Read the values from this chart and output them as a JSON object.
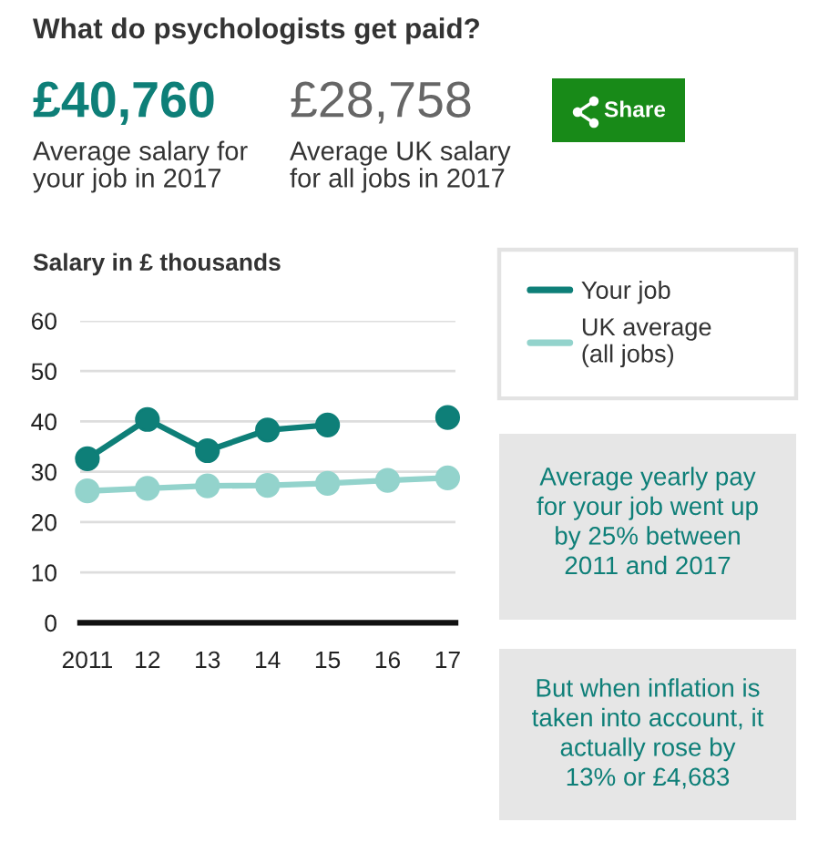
{
  "chart_data": {
    "type": "line",
    "title": "What do psychologists get paid?",
    "ylabel": "Salary in £ thousands",
    "x": [
      2011,
      2012,
      2013,
      2014,
      2015,
      2016,
      2017
    ],
    "xlim": [
      2010.88,
      2017.13
    ],
    "xticks": [
      2011,
      {
        "value": 2012,
        "label": "12"
      },
      {
        "value": 2013,
        "label": "13"
      },
      {
        "value": 2014,
        "label": "14"
      },
      {
        "value": 2015,
        "label": "15"
      },
      {
        "value": 2016,
        "label": "16"
      },
      {
        "value": 2017,
        "label": "17"
      }
    ],
    "ylim": [
      0,
      60
    ],
    "yticks": [
      0,
      10,
      20,
      30,
      40,
      50,
      60
    ],
    "series": [
      {
        "name": "Your job",
        "color": "#0e7f78",
        "values": [
          32.6,
          40.4,
          34.2,
          38.3,
          39.3,
          null,
          40.8
        ]
      },
      {
        "name": "UK average\n(all jobs)",
        "color": "#93d3cc",
        "values": [
          26.2,
          26.7,
          27.2,
          27.3,
          27.7,
          28.3,
          28.8
        ]
      }
    ],
    "grid": "y",
    "legend": "right",
    "marker": "circle",
    "line_style": "solid",
    "annotations": [
      "£40,760",
      "Average salary for\nyour job in 2017",
      "£28,758",
      "Average UK salary\nfor all jobs in 2017",
      "Share",
      "Average yearly pay\nfor your job went up\nby 25% between\n2011 and 2017",
      "But when inflation is\ntaken into account, it\nactually rose by\n13% or £4,683"
    ]
  }
}
